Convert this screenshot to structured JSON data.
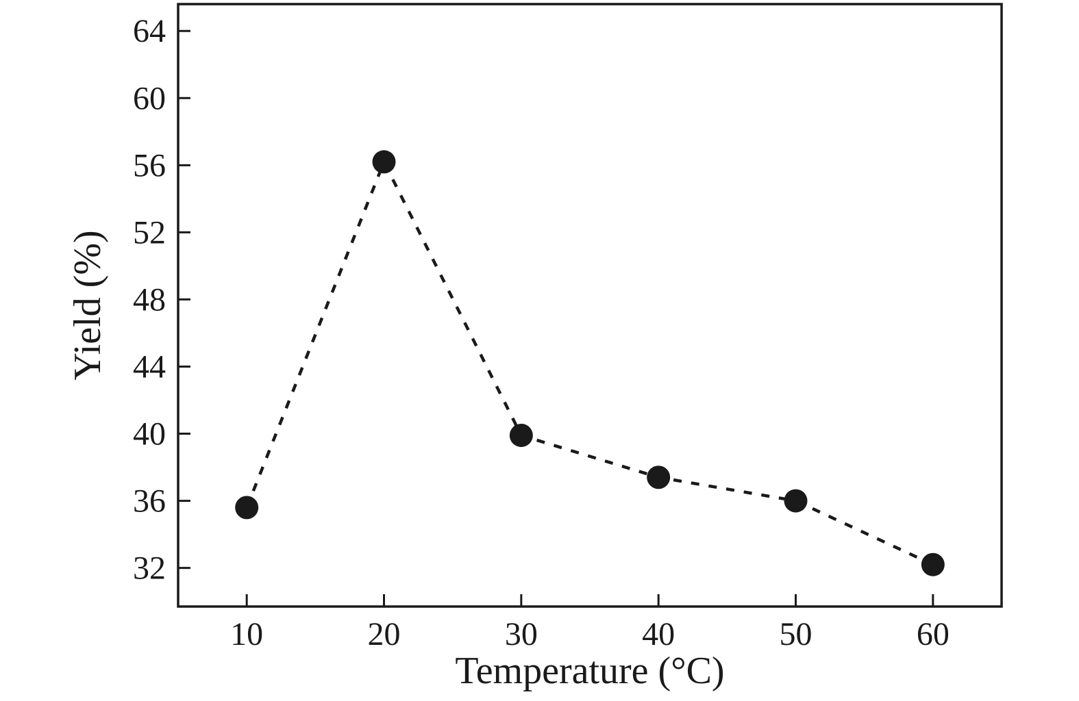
{
  "chart_data": {
    "type": "line",
    "title": "",
    "xlabel": "Temperature (°C)",
    "ylabel": "Yield (%)",
    "x": [
      10,
      20,
      30,
      40,
      50,
      60
    ],
    "series": [
      {
        "name": "Yield",
        "values": [
          35.6,
          56.2,
          39.9,
          37.4,
          36.0,
          32.2
        ]
      }
    ],
    "xlim": [
      5,
      65
    ],
    "ylim": [
      29.7,
      65.6
    ],
    "x_ticks": [
      10,
      20,
      30,
      40,
      50,
      60
    ],
    "y_ticks": [
      32,
      36,
      40,
      44,
      48,
      52,
      56,
      60,
      64
    ],
    "line_style": "dashed",
    "marker": "circle",
    "marker_color": "#1a1a1a",
    "line_color": "#1a1a1a",
    "grid": false,
    "legend": "none",
    "background": "#ffffff"
  }
}
